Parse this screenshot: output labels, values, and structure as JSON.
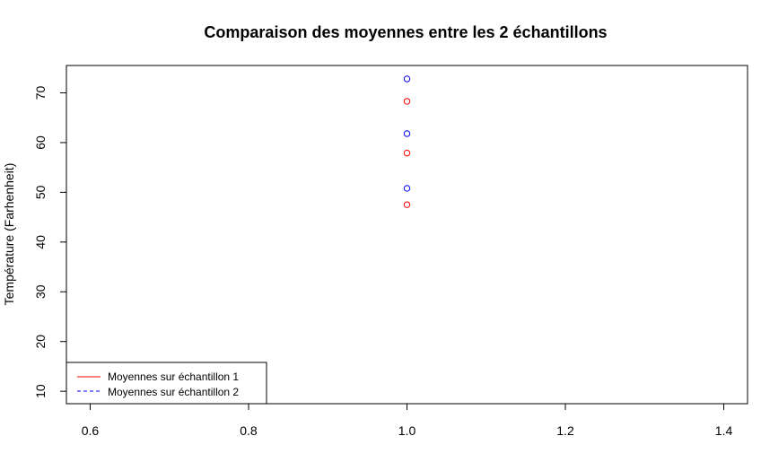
{
  "chart_data": {
    "type": "scatter",
    "title": "Comparaison des moyennes entre les 2 échantillons",
    "xlabel": "",
    "ylabel": "Température (Farhenheit)",
    "xlim": [
      0.57,
      1.43
    ],
    "ylim": [
      7.5,
      75.5
    ],
    "x_ticks": [
      0.6,
      0.8,
      1.0,
      1.2,
      1.4
    ],
    "x_tick_labels": [
      "0.6",
      "0.8",
      "1.0",
      "1.2",
      "1.4"
    ],
    "y_ticks": [
      10,
      20,
      30,
      40,
      50,
      60,
      70
    ],
    "y_tick_labels": [
      "10",
      "20",
      "30",
      "40",
      "50",
      "60",
      "70"
    ],
    "grid": false,
    "legend_position": "bottom-left",
    "series": [
      {
        "name": "Moyennes sur échantillon 1",
        "color": "#ff0000",
        "line_style": "solid",
        "marker": "open-circle",
        "x": [
          1.0,
          1.0,
          1.0
        ],
        "y": [
          47.5,
          57.9,
          68.3
        ]
      },
      {
        "name": "Moyennes sur échantillon 2",
        "color": "#0000ff",
        "line_style": "dashed",
        "marker": "open-circle",
        "x": [
          1.0,
          1.0,
          1.0
        ],
        "y": [
          50.8,
          61.8,
          72.8
        ]
      }
    ]
  }
}
